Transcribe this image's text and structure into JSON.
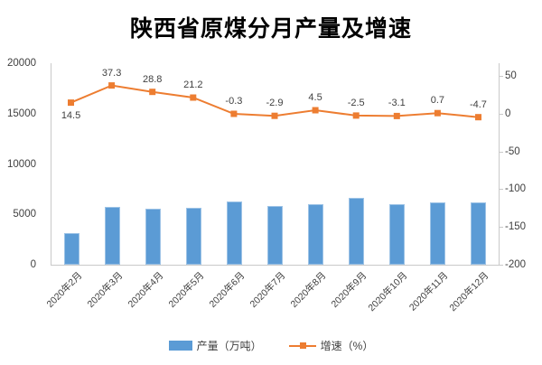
{
  "title": "陕西省原煤分月产量及增速",
  "chart_data": {
    "type": "combo-bar-line",
    "title": "陕西省原煤分月产量及增速",
    "categories": [
      "2020年2月",
      "2020年3月",
      "2020年4月",
      "2020年5月",
      "2020年6月",
      "2020年7月",
      "2020年8月",
      "2020年9月",
      "2020年10月",
      "2020年11月",
      "2020年12月"
    ],
    "series": [
      {
        "name": "产量（万吨）",
        "type": "bar",
        "axis": "left",
        "color": "#5B9BD5",
        "values": [
          3140,
          5720,
          5550,
          5650,
          6280,
          5820,
          6010,
          6600,
          6040,
          6160,
          6220
        ]
      },
      {
        "name": "增速（%）",
        "type": "line",
        "axis": "right",
        "color": "#ED7D31",
        "values": [
          14.5,
          37.3,
          28.8,
          21.2,
          -0.3,
          -2.9,
          4.5,
          -2.5,
          -3.1,
          0.7,
          -4.7
        ],
        "data_labels": [
          "14.5",
          "37.3",
          "28.8",
          "21.2",
          "-0.3",
          "-2.9",
          "4.5",
          "-2.5",
          "-3.1",
          "0.7",
          "-4.7"
        ]
      }
    ],
    "left_axis": {
      "min": 0,
      "max": 20000,
      "ticks": [
        "0",
        "5000",
        "10000",
        "15000",
        "20000"
      ],
      "tick_values": [
        0,
        5000,
        10000,
        15000,
        20000
      ]
    },
    "right_axis": {
      "min": -200,
      "max": 66.7,
      "ticks": [
        "50",
        "0",
        "-50",
        "-100",
        "-150",
        "-200"
      ],
      "tick_values": [
        50,
        0,
        -50,
        -100,
        -150,
        -200
      ]
    },
    "grid": false,
    "legend_position": "bottom",
    "label_below_indices": [
      0
    ]
  }
}
